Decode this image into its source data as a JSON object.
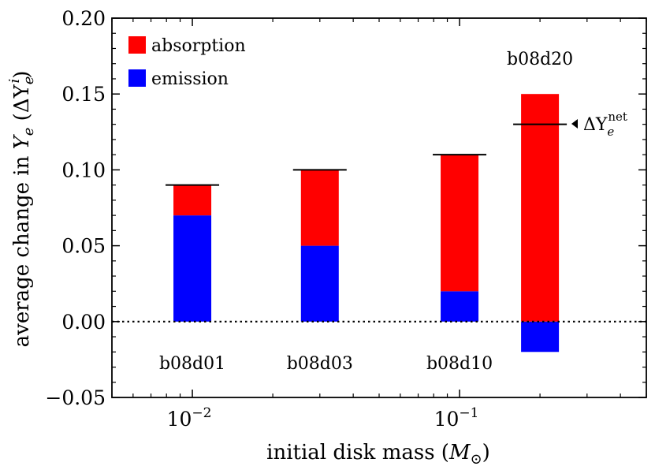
{
  "chart_data": {
    "type": "bar",
    "stacked": true,
    "title": "",
    "xlabel": "initial disk mass (M☉)",
    "xlabel_parts": {
      "main": "initial disk mass (",
      "var": "M",
      "sub": "⊙",
      "close": ")"
    },
    "ylabel": "average change in Ye (ΔYe^i)",
    "ylabel_parts": {
      "main": "average change in ",
      "var": "Y",
      "sub": "e",
      "paren_open": " (",
      "bar_var": "ΔY",
      "bar_sub": "e",
      "bar_sup": "i",
      "paren_close": ")"
    },
    "xscale": "log",
    "xlim": [
      0.005,
      0.5
    ],
    "ylim": [
      -0.05,
      0.2
    ],
    "x_major_ticks": [
      {
        "value": 0.01,
        "base": "10",
        "exp": "−2"
      },
      {
        "value": 0.1,
        "base": "10",
        "exp": "−1"
      }
    ],
    "y_ticks": [
      {
        "value": -0.05,
        "label": "−0.05"
      },
      {
        "value": 0.0,
        "label": "0.00"
      },
      {
        "value": 0.05,
        "label": "0.05"
      },
      {
        "value": 0.1,
        "label": "0.10"
      },
      {
        "value": 0.15,
        "label": "0.15"
      },
      {
        "value": 0.2,
        "label": "0.20"
      }
    ],
    "zero_line": "dotted",
    "grid": false,
    "legend": {
      "position": "top-left",
      "items": [
        {
          "name": "absorption",
          "color": "#ff0000"
        },
        {
          "name": "emission",
          "color": "#0000ff"
        }
      ]
    },
    "runs": [
      {
        "label": "b08d01",
        "disk_mass": 0.01,
        "emission": 0.07,
        "absorption": 0.02,
        "net": 0.09
      },
      {
        "label": "b08d03",
        "disk_mass": 0.03,
        "emission": 0.05,
        "absorption": 0.05,
        "net": 0.1
      },
      {
        "label": "b08d10",
        "disk_mass": 0.1,
        "emission": 0.02,
        "absorption": 0.09,
        "net": 0.11
      },
      {
        "label": "b08d20",
        "disk_mass": 0.2,
        "emission": -0.02,
        "absorption": 0.15,
        "net": 0.13
      }
    ],
    "net_annotation": {
      "bar_var": "ΔY",
      "sub": "e",
      "sup": "net"
    }
  }
}
